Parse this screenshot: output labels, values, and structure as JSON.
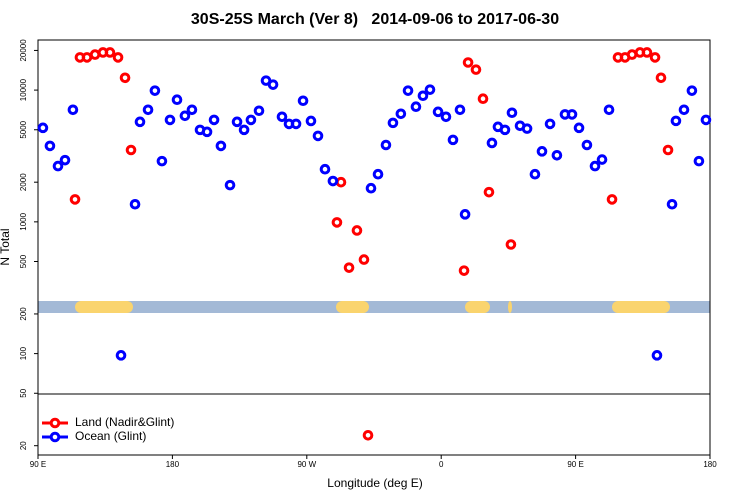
{
  "chart_data": {
    "type": "scatter",
    "title": "30S-25S March (Ver 8)   2014-09-06 to 2017-06-30",
    "x_label": "Longitude (deg E)",
    "y_label": "N Total",
    "log_y": true,
    "legend_position": "lower left",
    "xlim": [
      90,
      540
    ],
    "ylim": [
      17,
      24000
    ],
    "xticks": [
      {
        "value": 90,
        "label": "90 E"
      },
      {
        "value": 180,
        "label": "180"
      },
      {
        "value": 270,
        "label": "90 W"
      },
      {
        "value": 360,
        "label": "0"
      },
      {
        "value": 450,
        "label": "90 E"
      },
      {
        "value": 540,
        "label": "180"
      }
    ],
    "yticks": [
      20,
      50,
      100,
      200,
      500,
      1000,
      2000,
      5000,
      10000,
      20000
    ],
    "series": [
      {
        "name": "Land (Nadir&Glint)",
        "color": "#ff0000",
        "x": [
          114.8,
          118.1,
          122.8,
          128.2,
          133.5,
          138.2,
          143.6,
          148.3,
          152.3,
          290.2,
          292.9,
          298.3,
          303.6,
          308.3,
          311,
          375.3,
          378,
          383.3,
          388,
          392,
          406.7,
          474.4,
          478.4,
          483.1,
          487.8,
          493.1,
          497.8,
          503.2,
          507.2,
          511.9
        ],
        "values": [
          1480,
          17700,
          17700,
          18600,
          19300,
          19300,
          17700,
          12400,
          3510,
          990,
          2000,
          449,
          860,
          517,
          24,
          426,
          16200,
          14300,
          8600,
          1680,
          673,
          1480,
          17700,
          17700,
          18600,
          19300,
          19300,
          17700,
          12400,
          3510
        ]
      },
      {
        "name": "Ocean (Glint)",
        "color": "#0000ff",
        "x": [
          93.3,
          98,
          103.4,
          108.1,
          113.4,
          145.6,
          155,
          158.3,
          163.7,
          168.3,
          173,
          178.4,
          183.1,
          188.4,
          193.1,
          198.5,
          203.2,
          207.9,
          212.5,
          218.6,
          223.3,
          228,
          232.6,
          238,
          242.7,
          247.4,
          253.4,
          258.1,
          262.8,
          267.5,
          272.8,
          277.5,
          282.2,
          287.5,
          313,
          317.7,
          323,
          327.7,
          333,
          337.8,
          343.1,
          347.8,
          352.5,
          357.9,
          363.2,
          367.9,
          372.6,
          376,
          394,
          398,
          402.7,
          407.4,
          412.8,
          417.5,
          422.8,
          427.5,
          432.9,
          437.5,
          442.9,
          447.6,
          452.3,
          457.6,
          463,
          467.7,
          472.4,
          504.5,
          514.6,
          517.2,
          522.6,
          527.9,
          532.6,
          537.3
        ],
        "values": [
          5170,
          3770,
          2650,
          2940,
          7090,
          97,
          1360,
          5740,
          7090,
          9900,
          2890,
          5940,
          8450,
          6380,
          7090,
          4990,
          4820,
          5940,
          3770,
          1900,
          5740,
          4990,
          5940,
          6970,
          11800,
          11000,
          6270,
          5540,
          5540,
          8300,
          5830,
          4490,
          2510,
          2040,
          1800,
          2300,
          3830,
          5640,
          6610,
          9900,
          7480,
          9060,
          10080,
          6840,
          6270,
          4190,
          7090,
          1140,
          3970,
          5260,
          4990,
          6730,
          5360,
          5100,
          2300,
          3430,
          5540,
          3200,
          6540,
          6540,
          5170,
          3830,
          2650,
          2970,
          7090,
          97,
          1360,
          5840,
          7090,
          9900,
          2890,
          5940
        ]
      }
    ]
  }
}
